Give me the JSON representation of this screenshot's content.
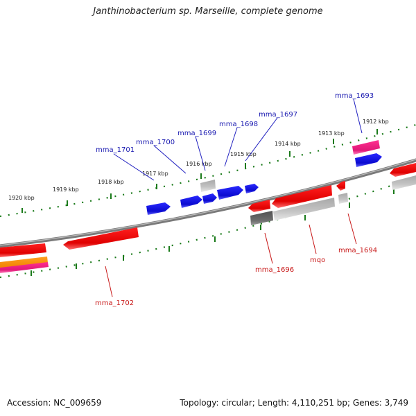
{
  "title": "Janthinobacterium sp. Marseille, complete genome",
  "footer": {
    "accession": "Accession: NC_009659",
    "stats": "Topology: circular; Length: 4,110,251 bp; Genes: 3,749"
  },
  "scale_labels": [
    "1912 kbp",
    "1913 kbp",
    "1914 kbp",
    "1915 kbp",
    "1916 kbp",
    "1917 kbp",
    "1918 kbp",
    "1919 kbp",
    "1920 kbp"
  ],
  "gene_labels_upper": [
    "mma_1693",
    "mma_1697",
    "mma_1698",
    "mma_1699",
    "mma_1700",
    "mma_1701"
  ],
  "gene_labels_lower": [
    "mma_1694",
    "mqo",
    "mma_1696",
    "mma_1702"
  ],
  "colors": {
    "forward_gene": "#1010e0",
    "reverse_gene": "#e81010",
    "pseudo_gene": "#b0b0b0",
    "rna_gene": "#e81890",
    "other_gene": "#f08c00",
    "dark_gene": "#606060",
    "backbone": "#808080",
    "scale_tick": "#1a7a1a",
    "upper_label": "#1818b0",
    "lower_label": "#c81818"
  }
}
